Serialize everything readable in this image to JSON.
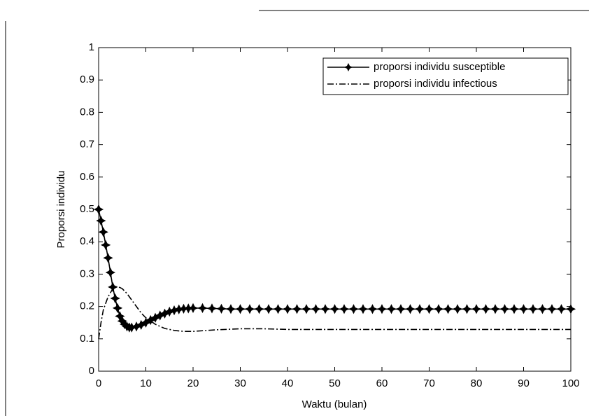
{
  "chart_data": {
    "type": "line",
    "xlabel": "Waktu (bulan)",
    "ylabel": "Proporsi individu",
    "xlim": [
      0,
      100
    ],
    "xticks": [
      0,
      10,
      20,
      30,
      40,
      50,
      60,
      70,
      80,
      90,
      100
    ],
    "ylim": [
      0,
      1
    ],
    "yticks": [
      0,
      0.1,
      0.2,
      0.3,
      0.4,
      0.5,
      0.6,
      0.7,
      0.8,
      0.9,
      1
    ],
    "legend": "top-right",
    "series": [
      {
        "name": "proporsi individu susceptible",
        "color": "#000000",
        "line_style": "solid",
        "marker": "star",
        "x": [
          0,
          0.5,
          1,
          1.5,
          2,
          2.5,
          3,
          3.5,
          4,
          4.5,
          5,
          5.5,
          6,
          6.5,
          7,
          8,
          9,
          10,
          11,
          12,
          13,
          14,
          15,
          16,
          17,
          18,
          19,
          20,
          22,
          24,
          26,
          28,
          30,
          32,
          34,
          36,
          38,
          40,
          42,
          44,
          46,
          48,
          50,
          52,
          54,
          56,
          58,
          60,
          62,
          64,
          66,
          68,
          70,
          72,
          74,
          76,
          78,
          80,
          82,
          84,
          86,
          88,
          90,
          92,
          94,
          96,
          98,
          100
        ],
        "values": [
          0.5,
          0.465,
          0.43,
          0.39,
          0.35,
          0.305,
          0.26,
          0.225,
          0.195,
          0.17,
          0.155,
          0.145,
          0.138,
          0.135,
          0.135,
          0.138,
          0.143,
          0.15,
          0.158,
          0.165,
          0.172,
          0.178,
          0.184,
          0.188,
          0.191,
          0.193,
          0.194,
          0.195,
          0.195,
          0.194,
          0.193,
          0.192,
          0.192,
          0.192,
          0.192,
          0.192,
          0.192,
          0.192,
          0.192,
          0.192,
          0.192,
          0.192,
          0.192,
          0.192,
          0.192,
          0.192,
          0.192,
          0.192,
          0.192,
          0.192,
          0.192,
          0.192,
          0.192,
          0.192,
          0.192,
          0.192,
          0.192,
          0.192,
          0.192,
          0.192,
          0.192,
          0.192,
          0.192,
          0.192,
          0.192,
          0.192,
          0.192,
          0.192
        ]
      },
      {
        "name": "proporsi individu infectious",
        "color": "#000000",
        "line_style": "dashdot",
        "marker": null,
        "x": [
          0,
          0.5,
          1,
          2,
          3,
          4,
          5,
          6,
          7,
          8,
          9,
          10,
          12,
          14,
          16,
          18,
          20,
          22,
          25,
          30,
          35,
          40,
          50,
          60,
          80,
          100
        ],
        "values": [
          0.1,
          0.15,
          0.19,
          0.23,
          0.255,
          0.262,
          0.255,
          0.24,
          0.22,
          0.2,
          0.18,
          0.165,
          0.145,
          0.132,
          0.126,
          0.123,
          0.123,
          0.125,
          0.128,
          0.131,
          0.131,
          0.129,
          0.129,
          0.129,
          0.129,
          0.129
        ]
      }
    ]
  }
}
